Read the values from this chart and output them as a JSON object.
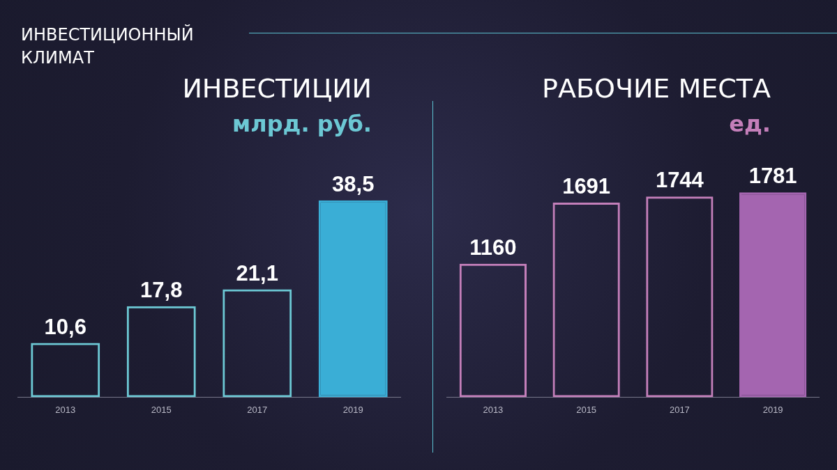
{
  "chart_data": [
    {
      "type": "bar",
      "title": "ИНВЕСТИЦИИ",
      "subtitle": "млрд. руб.",
      "annotations": [
        "ИНВЕСТИЦИОННЫЙ КЛИМАТ"
      ],
      "categories": [
        "2013",
        "2015",
        "2017",
        "2019"
      ],
      "values": [
        10.6,
        17.8,
        21.1,
        38.5
      ],
      "colors": [
        "#6cc8d4",
        "#6cc8d4",
        "#6cc8d4",
        "#3aaed6"
      ],
      "value_labels": [
        "10,6",
        "17,8",
        "21,1",
        "38,5"
      ]
    },
    {
      "type": "bar",
      "title": "РАБОЧИЕ МЕСТА",
      "subtitle": "ед.",
      "categories": [
        "2013",
        "2015",
        "2017",
        "2019"
      ],
      "values": [
        1160,
        1691,
        1744,
        1781
      ],
      "colors": [
        "#c47fba",
        "#c47fba",
        "#c47fba",
        "#a465b0"
      ],
      "data_labels": true
    }
  ]
}
